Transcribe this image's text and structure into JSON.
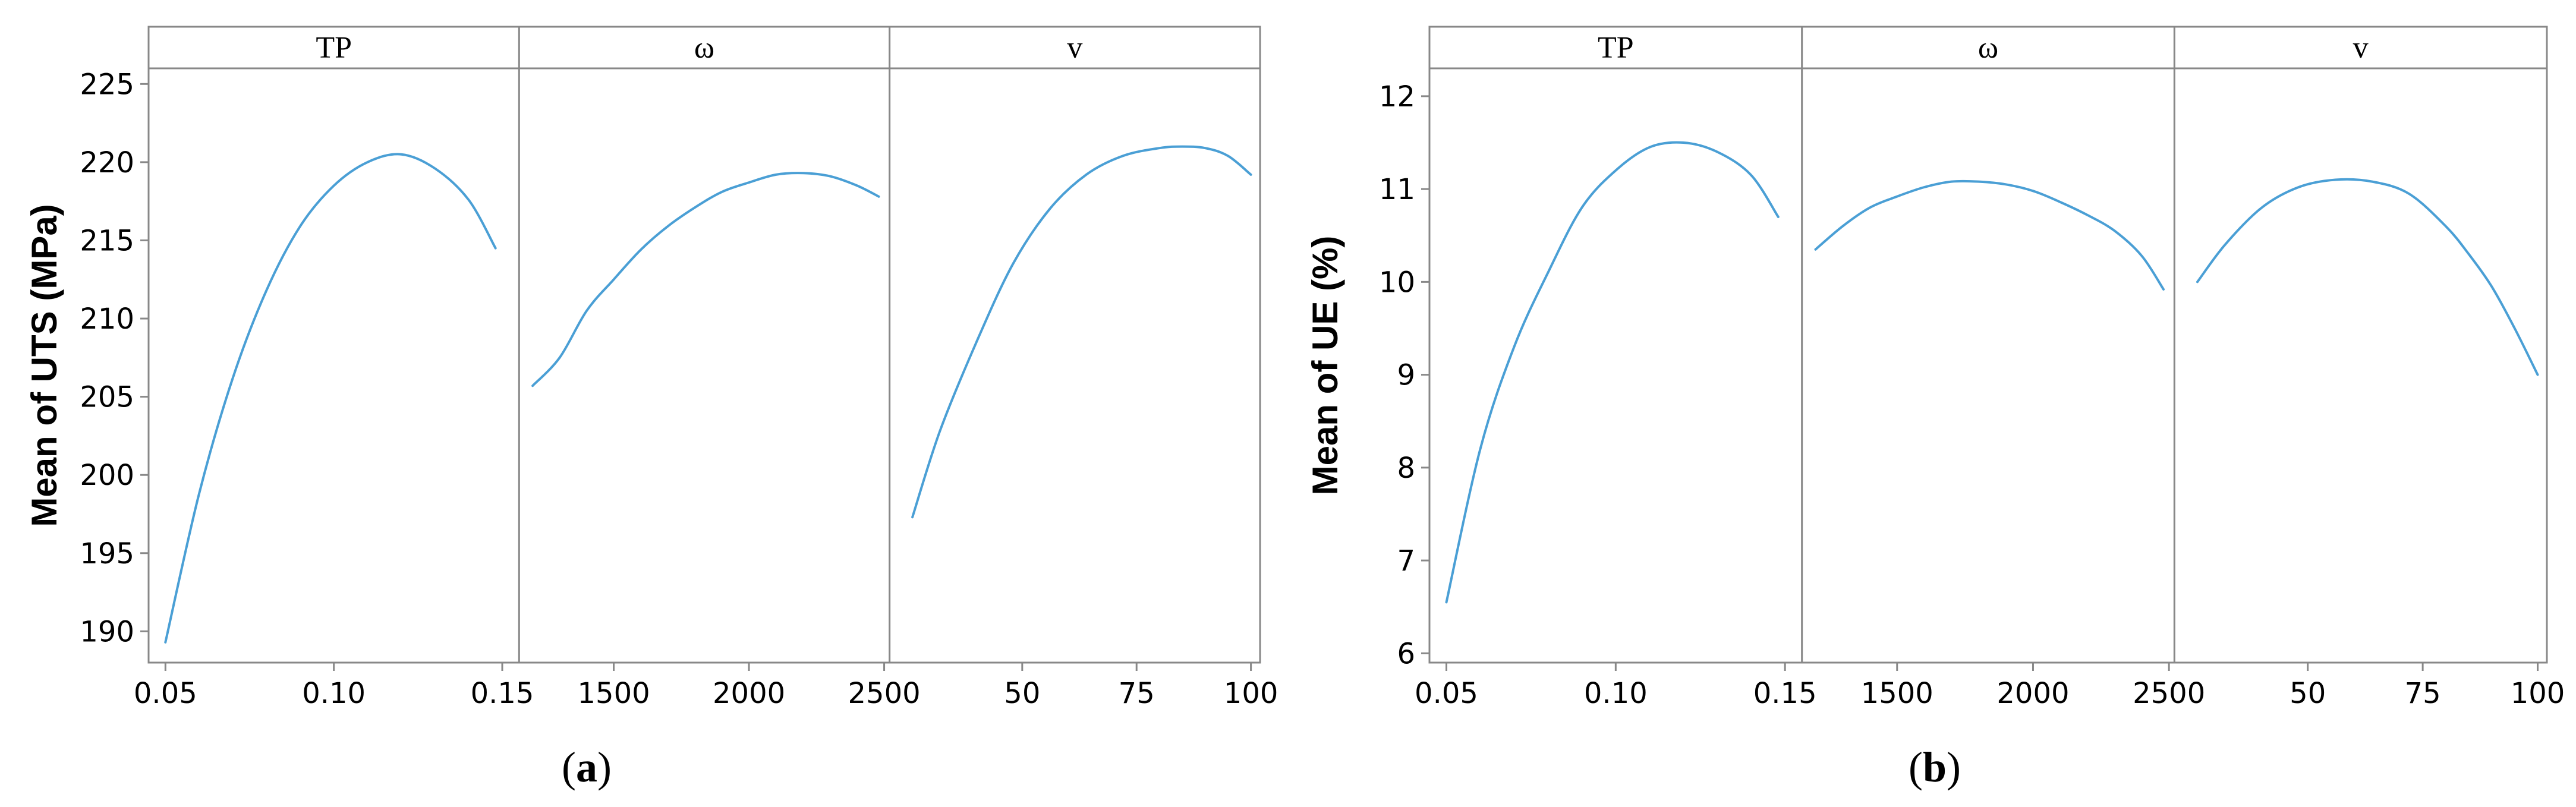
{
  "figure": {
    "captions": [
      {
        "open": "(",
        "letter": "a",
        "close": ")"
      },
      {
        "open": "(",
        "letter": "b",
        "close": ")"
      }
    ]
  },
  "colors": {
    "line": "#4a9fd5",
    "frame": "#888888",
    "axis_text": "#000000"
  },
  "chart_data": [
    {
      "type": "line",
      "ylabel": "Mean of UTS (MPa)",
      "ylim": [
        188,
        226
      ],
      "yticks": [
        190,
        195,
        200,
        205,
        210,
        215,
        220,
        225
      ],
      "panels": [
        {
          "name": "TP",
          "xlim": [
            0.045,
            0.155
          ],
          "xticks": [
            0.05,
            0.1,
            0.15
          ],
          "xtick_labels": [
            "0.05",
            "0.10",
            "0.15"
          ],
          "x": [
            0.05,
            0.06,
            0.07,
            0.08,
            0.09,
            0.1,
            0.11,
            0.12,
            0.13,
            0.14,
            0.148
          ],
          "y": [
            189.3,
            198.8,
            206.2,
            211.8,
            215.9,
            218.5,
            220.0,
            220.5,
            219.6,
            217.6,
            214.5
          ]
        },
        {
          "name": "ω",
          "xlim": [
            1150,
            2520
          ],
          "xticks": [
            1500,
            2000,
            2500
          ],
          "xtick_labels": [
            "1500",
            "2000",
            "2500"
          ],
          "x": [
            1200,
            1300,
            1400,
            1500,
            1600,
            1700,
            1800,
            1900,
            2000,
            2100,
            2200,
            2300,
            2400,
            2480
          ],
          "y": [
            205.7,
            207.5,
            210.5,
            212.5,
            214.4,
            215.9,
            217.1,
            218.1,
            218.7,
            219.2,
            219.3,
            219.1,
            218.5,
            217.8
          ]
        },
        {
          "name": "v",
          "xlim": [
            21,
            102
          ],
          "xticks": [
            50,
            75,
            100
          ],
          "xtick_labels": [
            "50",
            "75",
            "100"
          ],
          "x": [
            26,
            32,
            40,
            48,
            56,
            64,
            72,
            80,
            85,
            90,
            95,
            100
          ],
          "y": [
            197.3,
            202.8,
            208.5,
            213.5,
            217.0,
            219.2,
            220.4,
            220.9,
            221.0,
            220.9,
            220.4,
            219.2
          ]
        }
      ]
    },
    {
      "type": "line",
      "ylabel": "Mean of UE (%)",
      "ylim": [
        5.9,
        12.3
      ],
      "yticks": [
        6,
        7,
        8,
        9,
        10,
        11,
        12
      ],
      "panels": [
        {
          "name": "TP",
          "xlim": [
            0.045,
            0.155
          ],
          "xticks": [
            0.05,
            0.1,
            0.15
          ],
          "xtick_labels": [
            "0.05",
            "0.10",
            "0.15"
          ],
          "x": [
            0.05,
            0.06,
            0.07,
            0.08,
            0.09,
            0.1,
            0.11,
            0.12,
            0.13,
            0.14,
            0.148
          ],
          "y": [
            6.55,
            8.2,
            9.3,
            10.1,
            10.8,
            11.2,
            11.45,
            11.5,
            11.4,
            11.15,
            10.7
          ]
        },
        {
          "name": "ω",
          "xlim": [
            1150,
            2520
          ],
          "xticks": [
            1500,
            2000,
            2500
          ],
          "xtick_labels": [
            "1500",
            "2000",
            "2500"
          ],
          "x": [
            1200,
            1300,
            1400,
            1500,
            1600,
            1700,
            1800,
            1900,
            2000,
            2100,
            2200,
            2300,
            2400,
            2480
          ],
          "y": [
            10.35,
            10.6,
            10.8,
            10.92,
            11.02,
            11.08,
            11.08,
            11.05,
            10.98,
            10.86,
            10.72,
            10.55,
            10.28,
            9.92
          ]
        },
        {
          "name": "v",
          "xlim": [
            21,
            102
          ],
          "xticks": [
            50,
            75,
            100
          ],
          "xtick_labels": [
            "50",
            "75",
            "100"
          ],
          "x": [
            26,
            32,
            40,
            48,
            56,
            64,
            72,
            80,
            85,
            90,
            95,
            100
          ],
          "y": [
            10.0,
            10.4,
            10.8,
            11.02,
            11.1,
            11.08,
            10.95,
            10.6,
            10.3,
            9.95,
            9.5,
            9.0
          ]
        }
      ]
    }
  ]
}
